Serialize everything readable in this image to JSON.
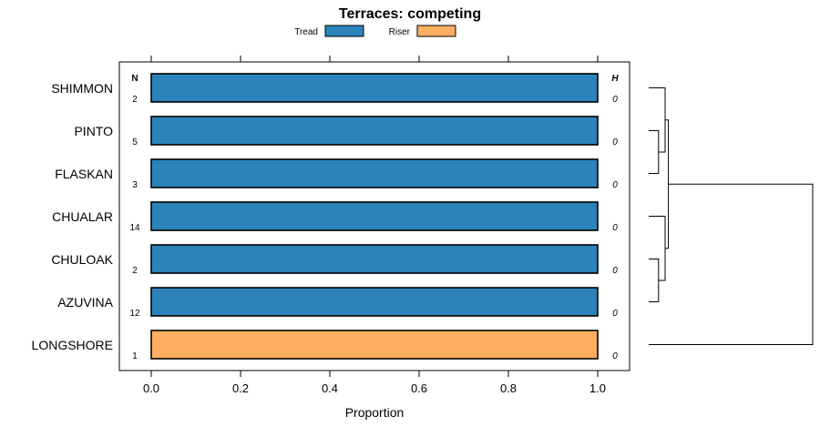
{
  "chart_data": {
    "type": "bar",
    "orientation": "horizontal",
    "stacked": true,
    "title": "Terraces: competing",
    "xlabel": "Proportion",
    "xlim": [
      0,
      1
    ],
    "xticks": [
      "0.0",
      "0.2",
      "0.4",
      "0.6",
      "0.8",
      "1.0"
    ],
    "legend_placement": "top",
    "left_header": "N",
    "right_header": "H",
    "categories": [
      "SHIMMON",
      "PINTO",
      "FLASKAN",
      "CHUALAR",
      "CHULOAK",
      "AZUVINA",
      "LONGSHORE"
    ],
    "n_values": [
      "2",
      "5",
      "3",
      "14",
      "2",
      "12",
      "1"
    ],
    "h_values": [
      "0",
      "0",
      "0",
      "0",
      "0",
      "0",
      "0"
    ],
    "series": [
      {
        "name": "Tread",
        "color": "#2b83ba",
        "values": [
          1,
          1,
          1,
          1,
          1,
          1,
          0
        ]
      },
      {
        "name": "Riser",
        "color": "#fdae61",
        "values": [
          0,
          0,
          0,
          0,
          0,
          0,
          1
        ]
      }
    ],
    "dendrogram": {
      "leaves": [
        "SHIMMON",
        "PINTO",
        "FLASKAN",
        "CHUALAR",
        "CHULOAK",
        "AZUVINA",
        "LONGSHORE"
      ],
      "merges": [
        {
          "a": "PINTO",
          "b": "FLASKAN",
          "height": 0.06
        },
        {
          "a": "CHULOAK",
          "b": "AZUVINA",
          "height": 0.06
        },
        {
          "a": "SHIMMON",
          "b": "PINTO+FLASKAN",
          "height": 0.1
        },
        {
          "a": "CHUALAR",
          "b": "CHULOAK+AZUVINA",
          "height": 0.1
        },
        {
          "a": "SHIMMON+PINTO+FLASKAN",
          "b": "CHUALAR+CHULOAK+AZUVINA",
          "height": 0.12
        },
        {
          "a": "SHIMMON+PINTO+FLASKAN+CHUALAR+CHULOAK+AZUVINA",
          "b": "LONGSHORE",
          "height": 1.0
        }
      ]
    }
  }
}
